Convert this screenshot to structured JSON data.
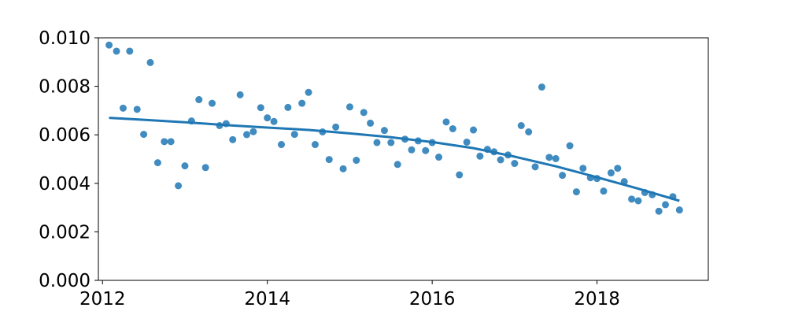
{
  "chart_data": {
    "type": "scatter",
    "title": "",
    "xlabel": "",
    "ylabel": "",
    "xlim": [
      2011.95,
      2019.35
    ],
    "ylim": [
      0,
      0.01
    ],
    "grid": false,
    "x_ticks": [
      2012,
      2014,
      2016,
      2018
    ],
    "x_tick_labels": [
      "2012",
      "2014",
      "2016",
      "2018"
    ],
    "y_ticks": [
      0,
      0.002,
      0.004,
      0.006,
      0.008,
      0.01
    ],
    "y_tick_labels": [
      "0.000",
      "0.002",
      "0.004",
      "0.006",
      "0.008",
      "0.010"
    ],
    "colors": {
      "points": "#1f77b4",
      "trend": "#1f77b4"
    },
    "series": [
      {
        "kind": "points",
        "x": [
          2012.08,
          2012.17,
          2012.25,
          2012.33,
          2012.42,
          2012.5,
          2012.58,
          2012.67,
          2012.75,
          2012.83,
          2012.92,
          2013.0,
          2013.08,
          2013.17,
          2013.25,
          2013.33,
          2013.42,
          2013.5,
          2013.58,
          2013.67,
          2013.75,
          2013.83,
          2013.92,
          2014.0,
          2014.08,
          2014.17,
          2014.25,
          2014.33,
          2014.42,
          2014.5,
          2014.58,
          2014.67,
          2014.75,
          2014.83,
          2014.92,
          2015.0,
          2015.08,
          2015.17,
          2015.25,
          2015.33,
          2015.42,
          2015.5,
          2015.58,
          2015.67,
          2015.75,
          2015.83,
          2015.92,
          2016.0,
          2016.08,
          2016.17,
          2016.25,
          2016.33,
          2016.42,
          2016.5,
          2016.58,
          2016.67,
          2016.75,
          2016.83,
          2016.92,
          2017.0,
          2017.08,
          2017.17,
          2017.25,
          2017.33,
          2017.42,
          2017.5,
          2017.58,
          2017.67,
          2017.75,
          2017.83,
          2017.92,
          2018.0,
          2018.08,
          2018.17,
          2018.25,
          2018.33,
          2018.42,
          2018.5,
          2018.58,
          2018.67,
          2018.75,
          2018.83,
          2018.92,
          2019.0
        ],
        "y": [
          0.0097,
          0.00945,
          0.0071,
          0.00945,
          0.00705,
          0.00602,
          0.00898,
          0.00485,
          0.00572,
          0.00572,
          0.0039,
          0.00472,
          0.00657,
          0.00745,
          0.00465,
          0.0073,
          0.00638,
          0.00646,
          0.0058,
          0.00765,
          0.00601,
          0.00613,
          0.00712,
          0.0067,
          0.00655,
          0.0056,
          0.00713,
          0.00602,
          0.0073,
          0.00775,
          0.0056,
          0.00612,
          0.00498,
          0.00632,
          0.0046,
          0.00715,
          0.00495,
          0.00692,
          0.00648,
          0.00568,
          0.00618,
          0.00568,
          0.00478,
          0.00582,
          0.00538,
          0.00575,
          0.00535,
          0.00568,
          0.00508,
          0.00653,
          0.00625,
          0.00435,
          0.0057,
          0.0062,
          0.00512,
          0.0054,
          0.0053,
          0.00497,
          0.00517,
          0.00482,
          0.00638,
          0.00612,
          0.00468,
          0.00797,
          0.00507,
          0.00502,
          0.00433,
          0.00555,
          0.00365,
          0.00462,
          0.00423,
          0.0042,
          0.00368,
          0.00443,
          0.00462,
          0.00407,
          0.00335,
          0.00328,
          0.00362,
          0.00353,
          0.00285,
          0.00312,
          0.00345,
          0.0029
        ]
      },
      {
        "kind": "trend-line",
        "x": [
          2012.08,
          2012.5,
          2013.0,
          2013.5,
          2014.0,
          2014.5,
          2015.0,
          2015.5,
          2016.0,
          2016.5,
          2017.0,
          2017.5,
          2018.0,
          2018.5,
          2019.0
        ],
        "y": [
          0.0067,
          0.00662,
          0.00652,
          0.0064,
          0.0063,
          0.0062,
          0.00606,
          0.0059,
          0.0057,
          0.00545,
          0.0051,
          0.0047,
          0.00425,
          0.00378,
          0.00328
        ]
      }
    ]
  }
}
